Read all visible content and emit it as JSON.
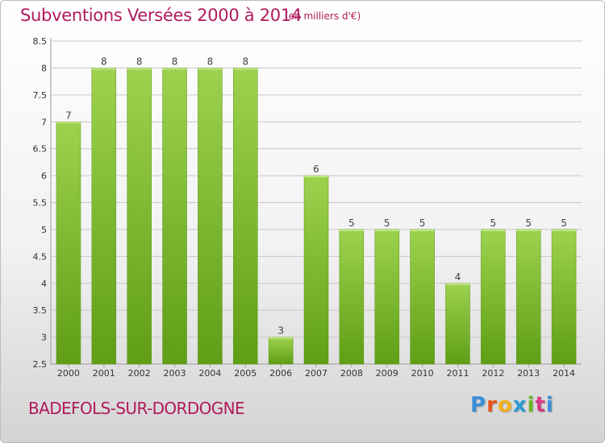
{
  "header": {
    "title": "Subventions Versées 2000 à 2014",
    "subtitle": "(en milliers d'€)"
  },
  "footer": {
    "commune": "BADEFOLS-SUR-DORDOGNE",
    "logo_text": "Proxiti",
    "logo_colors": [
      "#3a8fd8",
      "#e8541c",
      "#f2b01a",
      "#2a9ad6",
      "#6bb52a",
      "#d63a86",
      "#3a8fd8"
    ]
  },
  "colors": {
    "bar_top": "#9dd24f",
    "bar_bottom": "#5f9e16",
    "grid": "#c8c8c8",
    "title": "#b01a5c"
  },
  "chart_data": {
    "type": "bar",
    "title": "Subventions Versées 2000 à 2014",
    "subtitle": "(en milliers d'€)",
    "categories": [
      "2000",
      "2001",
      "2002",
      "2003",
      "2004",
      "2005",
      "2006",
      "2007",
      "2008",
      "2009",
      "2010",
      "2011",
      "2012",
      "2013",
      "2014"
    ],
    "values": [
      7,
      8,
      8,
      8,
      8,
      8,
      3,
      6,
      5,
      5,
      5,
      4,
      5,
      5,
      5
    ],
    "ylim": [
      2.5,
      8.5
    ],
    "yticks": [
      "2.5",
      "3",
      "3.5",
      "4",
      "4.5",
      "5",
      "5.5",
      "6",
      "6.5",
      "7",
      "7.5",
      "8",
      "8.5"
    ],
    "grid": true,
    "legend": "none"
  }
}
